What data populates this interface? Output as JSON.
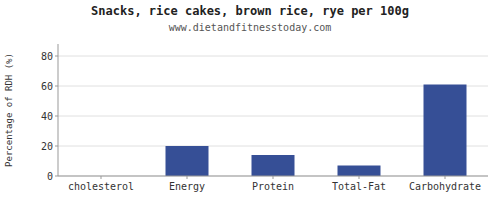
{
  "chart_data": {
    "type": "bar",
    "title": "Snacks, rice cakes, brown rice, rye per 100g",
    "subtitle": "www.dietandfitnesstoday.com",
    "categories": [
      "cholesterol",
      "Energy",
      "Protein",
      "Total-Fat",
      "Carbohydrate"
    ],
    "values": [
      0,
      20,
      14,
      7,
      61
    ],
    "color": "#364f96",
    "ylabel": "Percentage of RDH (%)",
    "ylim": [
      0,
      88
    ],
    "yticks": [
      0,
      20,
      40,
      60,
      80
    ],
    "grid": true
  }
}
